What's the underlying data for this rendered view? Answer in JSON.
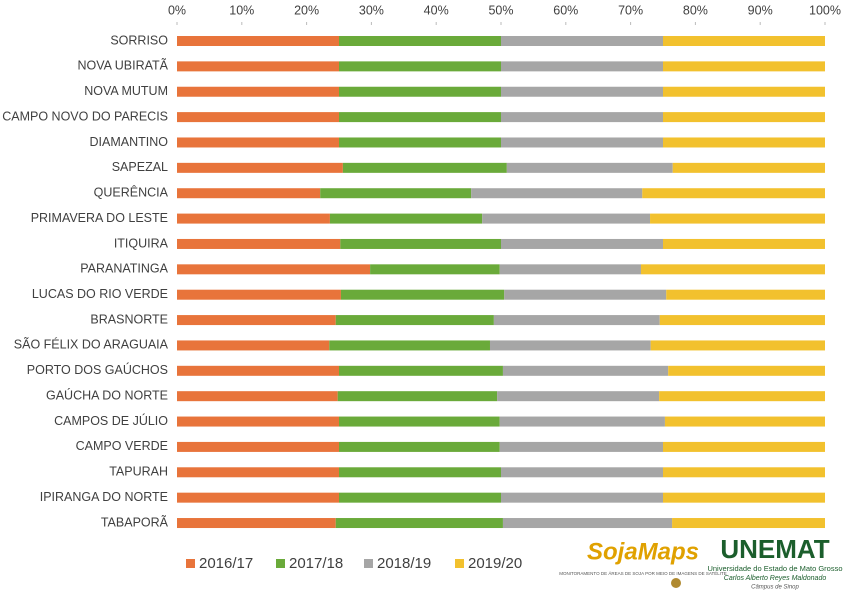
{
  "chart_data": {
    "type": "stacked_bar_horizontal",
    "categories": [
      "SORRISO",
      "NOVA UBIRATÃ",
      "NOVA MUTUM",
      "CAMPO NOVO DO PARECIS",
      "DIAMANTINO",
      "SAPEZAL",
      "QUERÊNCIA",
      "PRIMAVERA DO LESTE",
      "ITIQUIRA",
      "PARANATINGA",
      "LUCAS DO RIO VERDE",
      "BRASNORTE",
      "SÃO FÉLIX DO ARAGUAIA",
      "PORTO DOS GAÚCHOS",
      "GAÚCHA DO NORTE",
      "CAMPOS DE JÚLIO",
      "CAMPO VERDE",
      "TAPURAH",
      "IPIRANGA DO NORTE",
      "TABAPORÃ"
    ],
    "series": [
      {
        "name": "2016/17",
        "color": "#e8743b",
        "values": [
          25,
          25,
          25,
          25,
          25,
          25.6,
          22.1,
          23.6,
          25.2,
          29.8,
          25.3,
          24.5,
          23.5,
          25,
          24.8,
          25,
          25,
          25,
          25,
          24.5
        ]
      },
      {
        "name": "2017/18",
        "color": "#6aaa3a",
        "values": [
          25,
          25,
          25,
          25,
          25,
          25.3,
          23.3,
          23.5,
          24.8,
          20,
          25.2,
          24.4,
          24.8,
          25.3,
          24.6,
          24.8,
          24.8,
          25,
          25,
          25.8
        ]
      },
      {
        "name": "2018/19",
        "color": "#a6a6a6",
        "values": [
          25,
          25,
          25,
          25,
          25,
          25.6,
          26.4,
          25.9,
          25,
          21.8,
          25,
          25.6,
          24.8,
          25.5,
          25,
          25.5,
          25.2,
          25,
          25,
          26.1
        ]
      },
      {
        "name": "2019/20",
        "color": "#f2c12e",
        "values": [
          25,
          25,
          25,
          25,
          25,
          23.5,
          28.2,
          27,
          25,
          28.4,
          24.5,
          25.5,
          26.9,
          24.2,
          25.6,
          24.7,
          25,
          25,
          25,
          23.6
        ]
      }
    ],
    "xlim": [
      0,
      100
    ],
    "xticks": [
      {
        "value": 0,
        "label": "0%"
      },
      {
        "value": 10,
        "label": "10%"
      },
      {
        "value": 20,
        "label": "20%"
      },
      {
        "value": 30,
        "label": "30%"
      },
      {
        "value": 40,
        "label": "40%"
      },
      {
        "value": 50,
        "label": "50%"
      },
      {
        "value": 60,
        "label": "60%"
      },
      {
        "value": 70,
        "label": "70%"
      },
      {
        "value": 80,
        "label": "80%"
      },
      {
        "value": 90,
        "label": "90%"
      },
      {
        "value": 100,
        "label": "100%"
      }
    ],
    "grid": false,
    "legend": "bottom-left",
    "logos": [
      {
        "name": "SojaMaps",
        "tagline": "MONITORAMENTO DE ÁREAS DE SOJA POR MEIO DE IMAGENS DE SATÉLITE"
      },
      {
        "name": "UNEMAT",
        "tagline": "Universidade do Estado de Mato Grosso",
        "line2": "Carlos Alberto Reyes Maldonado",
        "line3": "Câmpus de Sinop"
      }
    ]
  }
}
